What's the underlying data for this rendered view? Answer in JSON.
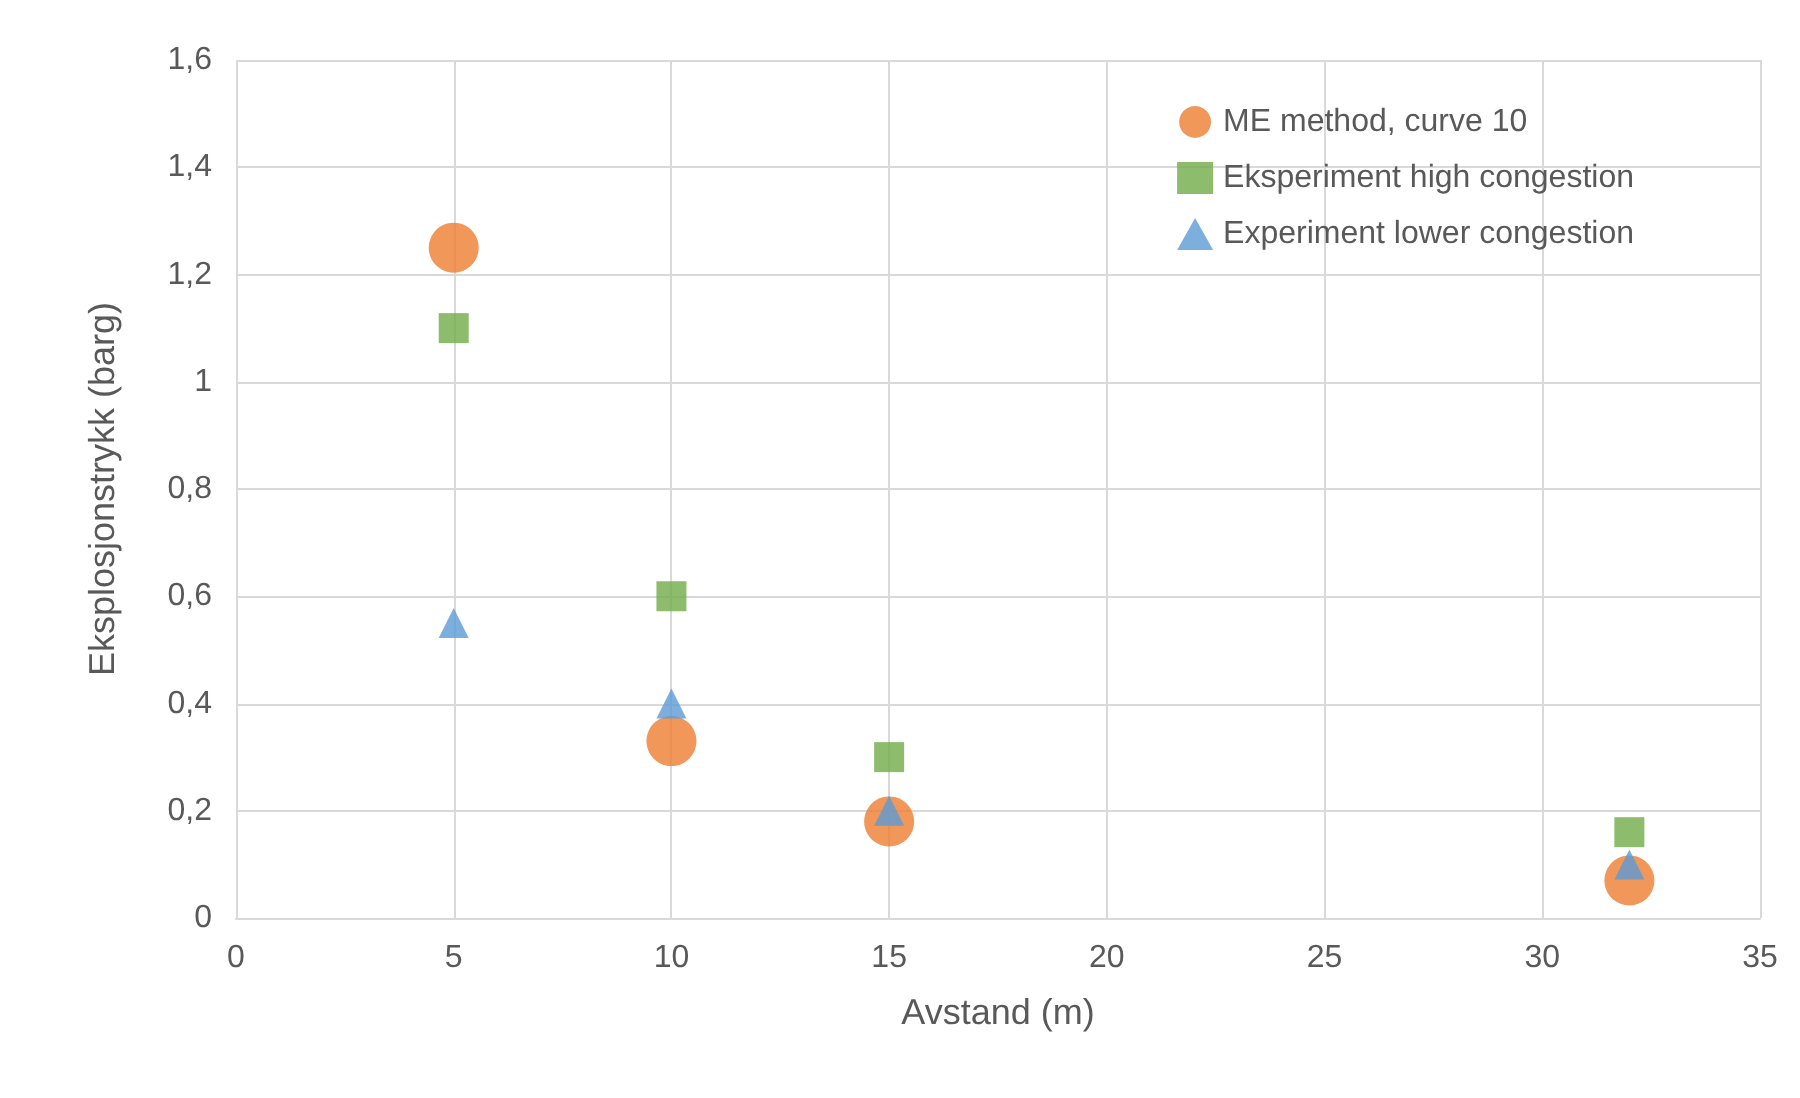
{
  "chart_data": {
    "type": "scatter",
    "xlabel": "Avstand (m)",
    "ylabel": "Eksplosjonstrykk (barg)",
    "x": [
      5,
      10,
      15,
      32
    ],
    "series": [
      {
        "name": "ME method, curve 10",
        "color": "#ed7d31",
        "marker": "circle",
        "values": [
          1.25,
          0.33,
          0.18,
          0.07
        ]
      },
      {
        "name": "Eksperiment high congestion",
        "color": "#70ad47",
        "marker": "square",
        "values": [
          1.1,
          0.6,
          0.3,
          0.16
        ]
      },
      {
        "name": "Experiment lower congestion",
        "color": "#5b9bd5",
        "marker": "triangle",
        "values": [
          0.55,
          0.4,
          0.2,
          0.1
        ]
      }
    ],
    "xlim": [
      0,
      35
    ],
    "xticks": [
      0,
      5,
      10,
      15,
      20,
      25,
      30,
      35
    ],
    "ylim": [
      0,
      1.6
    ],
    "yticks": [
      0,
      {
        "value": 0.2,
        "label": "0,2"
      },
      {
        "value": 0.4,
        "label": "0,4"
      },
      {
        "value": 0.6,
        "label": "0,6"
      },
      {
        "value": 0.8,
        "label": "0,8"
      },
      1,
      {
        "value": 1.2,
        "label": "1,2"
      },
      {
        "value": 1.4,
        "label": "1,4"
      },
      {
        "value": 1.6,
        "label": "1,6"
      }
    ],
    "grid": true,
    "legend": "top right"
  }
}
